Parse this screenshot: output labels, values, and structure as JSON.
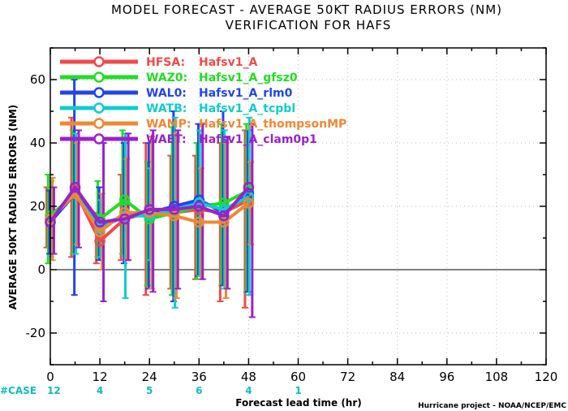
{
  "chart_data": {
    "type": "line",
    "title": "MODEL FORECAST - AVERAGE 50KT RADIUS ERRORS (NM)",
    "subtitle": "VERIFICATION FOR HAFS",
    "xlabel": "Forecast lead time (hr)",
    "ylabel": "AVERAGE 50KT RADIUS ERRORS (NM)",
    "xlim": [
      0,
      120
    ],
    "ylim": [
      -30,
      70
    ],
    "xticks": [
      0,
      12,
      24,
      36,
      48,
      60,
      72,
      84,
      96,
      108,
      120
    ],
    "yticks": [
      -20,
      0,
      20,
      40,
      60
    ],
    "grid": true,
    "legend_position": "top-left",
    "case_label": "#CASE",
    "case_counts": [
      {
        "x": 0,
        "n": "12"
      },
      {
        "x": 12,
        "n": "4"
      },
      {
        "x": 24,
        "n": "5"
      },
      {
        "x": 36,
        "n": "6"
      },
      {
        "x": 48,
        "n": "4"
      },
      {
        "x": 60,
        "n": "1"
      }
    ],
    "credit": "Hurricane project - NOAA/NCEP/EMC",
    "series": [
      {
        "name": "HFSA:",
        "label": "Hafsv1_A",
        "color": "#f04a4a",
        "x": [
          0,
          6,
          12,
          18,
          24,
          30,
          36,
          42,
          48
        ],
        "y": [
          16,
          25,
          9,
          16,
          18,
          18,
          19,
          18,
          22
        ],
        "err_low": [
          7,
          4,
          2,
          3,
          -8,
          -6,
          -3,
          -10,
          -12
        ],
        "err_high": [
          26,
          48,
          18,
          30,
          40,
          36,
          36,
          40,
          44
        ]
      },
      {
        "name": "WAZ0:",
        "label": "Hafsv1_A_gfsz0",
        "color": "#22dd22",
        "x": [
          0,
          6,
          12,
          18,
          24,
          30,
          36,
          42,
          48
        ],
        "y": [
          17,
          24,
          16,
          22,
          16,
          18,
          20,
          21,
          25
        ],
        "err_low": [
          2,
          5,
          4,
          5,
          -5,
          -8,
          -3,
          -5,
          -7
        ],
        "err_high": [
          30,
          44,
          28,
          44,
          34,
          45,
          40,
          46,
          46
        ]
      },
      {
        "name": "WAL0:",
        "label": "Hafsv1_A_rlm0",
        "color": "#2244ee",
        "x": [
          0,
          6,
          12,
          18,
          24,
          30,
          36,
          42,
          48
        ],
        "y": [
          15,
          24,
          14,
          17,
          18,
          20,
          22,
          18,
          24
        ],
        "err_low": [
          5,
          -8,
          3,
          2,
          -6,
          -10,
          -2,
          -5,
          -7
        ],
        "err_high": [
          25,
          60,
          26,
          40,
          40,
          50,
          46,
          50,
          44
        ]
      },
      {
        "name": "WATB:",
        "label": "Hafsv1_A_tcpbl",
        "color": "#11cccc",
        "x": [
          0,
          6,
          12,
          18,
          24,
          30,
          36,
          42,
          48
        ],
        "y": [
          16,
          24,
          13,
          17,
          17,
          19,
          21,
          19,
          23
        ],
        "err_low": [
          4,
          5,
          4,
          -9,
          3,
          -12,
          -2,
          -6,
          -8
        ],
        "err_high": [
          28,
          43,
          22,
          43,
          32,
          48,
          44,
          44,
          48
        ]
      },
      {
        "name": "WAMP:",
        "label": "Hafsv1_A_thompsonMP",
        "color": "#ee8833",
        "x": [
          0,
          6,
          12,
          18,
          24,
          30,
          36,
          42,
          48
        ],
        "y": [
          16,
          24,
          12,
          18,
          18,
          17,
          15,
          15,
          21
        ],
        "err_low": [
          3,
          8,
          0,
          3,
          -6,
          -9,
          -3,
          -9,
          8
        ],
        "err_high": [
          29,
          40,
          24,
          35,
          42,
          43,
          32,
          40,
          34
        ]
      },
      {
        "name": "WAET:",
        "label": "Hafsv1_A_clam0p1",
        "color": "#9922cc",
        "x": [
          0,
          6,
          12,
          18,
          24,
          30,
          36,
          42,
          48
        ],
        "y": [
          15,
          26,
          15,
          16,
          19,
          19,
          20,
          17,
          26
        ],
        "err_low": [
          5,
          7,
          -10,
          3,
          -7,
          -6,
          -3,
          -6,
          -15
        ],
        "err_high": [
          26,
          44,
          40,
          43,
          44,
          44,
          46,
          42,
          46
        ]
      }
    ]
  }
}
